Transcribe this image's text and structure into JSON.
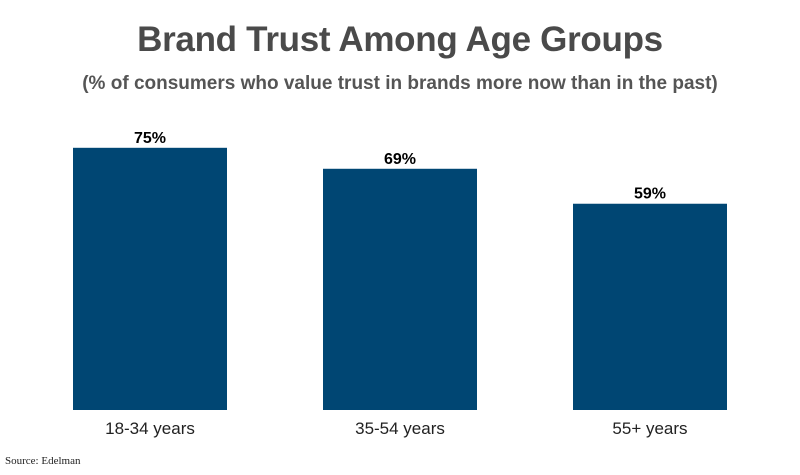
{
  "title": "Brand Trust Among Age Groups",
  "subtitle": "(% of consumers who value trust in brands more now than in the past)",
  "source": "Source: Edelman",
  "colors": {
    "bar": "#004673",
    "title": "#4a4a4a",
    "label": "#000000"
  },
  "chart_data": {
    "type": "bar",
    "title": "Brand Trust Among Age Groups",
    "subtitle": "(% of consumers who value trust in brands more now than in the past)",
    "categories": [
      "18-34 years",
      "35-54 years",
      "55+ years"
    ],
    "values": [
      75,
      69,
      59
    ],
    "value_labels": [
      "75%",
      "69%",
      "59%"
    ],
    "ylim": [
      0,
      100
    ],
    "grid": false,
    "legend": "none"
  }
}
